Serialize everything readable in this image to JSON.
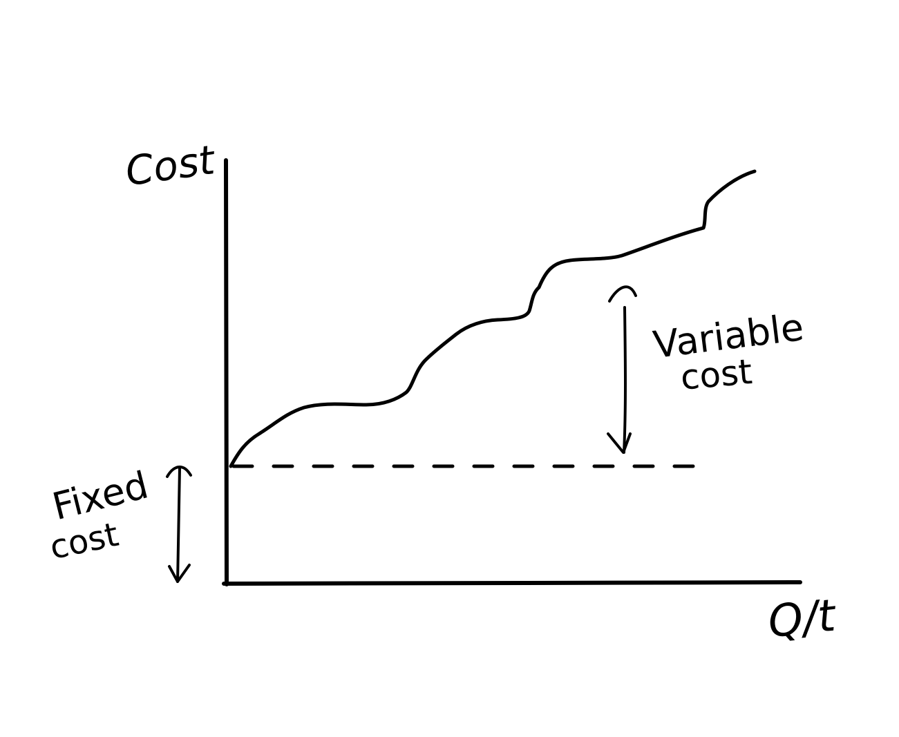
{
  "labels": {
    "y_axis": "Cost",
    "x_axis": "Q/t",
    "variable_cost_line1": "Variable",
    "variable_cost_line2": "cost",
    "fixed_cost_line1": "Fixed",
    "fixed_cost_line2": "cost"
  },
  "colors": {
    "ink": "#000000",
    "background": "#ffffff"
  }
}
